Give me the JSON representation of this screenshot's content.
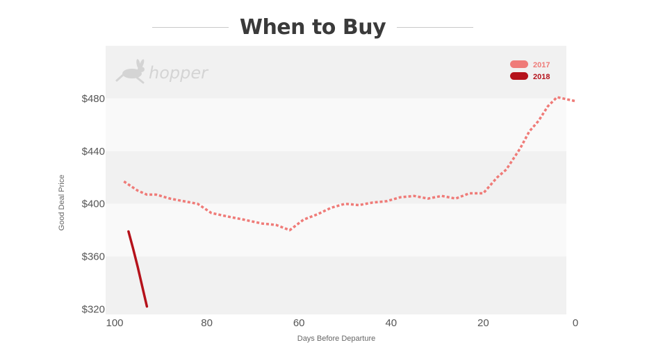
{
  "title": "When to Buy",
  "logo": {
    "name": "hopper",
    "icon": "rabbit-icon"
  },
  "colors": {
    "2017": "#ef7b78",
    "2018": "#b5121b"
  },
  "chart_data": {
    "type": "line",
    "title": "When to Buy",
    "xlabel": "Days Before Departure",
    "ylabel": "Good Deal Price",
    "xlim": [
      100,
      0
    ],
    "ylim": [
      316,
      520
    ],
    "x_ticks": [
      100,
      80,
      60,
      40,
      20,
      0
    ],
    "x_tick_labels": [
      "100",
      "80",
      "60",
      "40",
      "20",
      "0"
    ],
    "y_ticks": [
      480,
      440,
      400,
      360,
      320
    ],
    "y_tick_labels": [
      "$480",
      "$440",
      "$400",
      "$360",
      "$320"
    ],
    "grid": "horizontal bands",
    "legend_position": "top-right",
    "series": [
      {
        "name": "2017",
        "style": "dotted",
        "x": [
          98,
          95,
          93,
          91,
          88,
          85,
          82,
          79,
          75,
          72,
          68,
          65,
          62,
          59,
          56,
          53,
          50,
          47,
          44,
          41,
          38,
          35,
          32,
          29,
          26,
          23,
          20,
          17,
          15,
          12,
          10,
          8,
          6,
          4,
          0
        ],
        "y": [
          417,
          410,
          407,
          407,
          404,
          402,
          400,
          393,
          390,
          388,
          385,
          384,
          380,
          388,
          392,
          397,
          400,
          399,
          401,
          402,
          405,
          406,
          404,
          406,
          404,
          408,
          408,
          420,
          426,
          442,
          455,
          463,
          474,
          481,
          478
        ]
      },
      {
        "name": "2018",
        "style": "solid",
        "x": [
          97,
          96,
          95,
          94,
          93
        ],
        "y": [
          379,
          366,
          352,
          337,
          322
        ]
      }
    ]
  }
}
